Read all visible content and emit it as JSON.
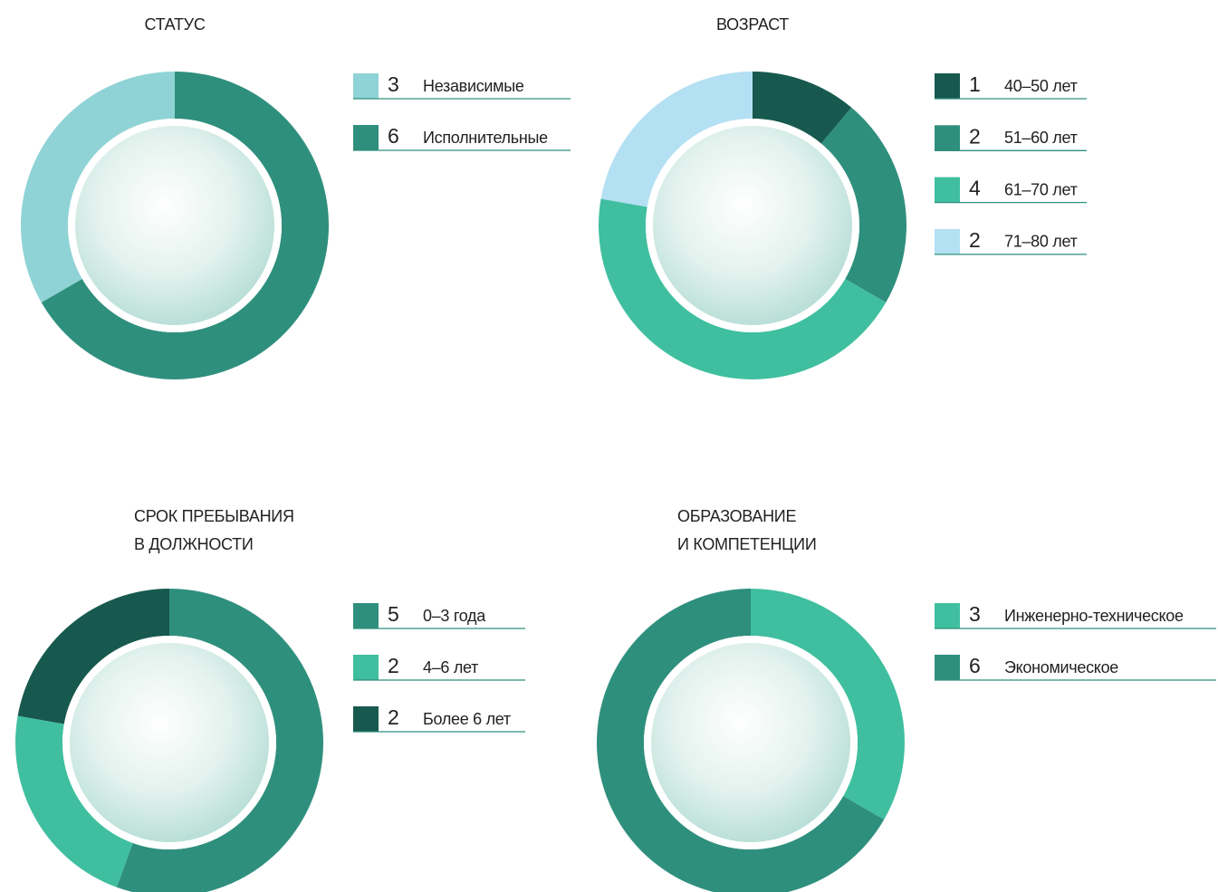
{
  "chart_data": [
    {
      "type": "pie",
      "title": "СТАТУС",
      "categories": [
        "Независимые",
        "Исполнительные"
      ],
      "values": [
        3,
        6
      ],
      "colors": [
        "#8fd3d6",
        "#2f8f7d"
      ],
      "counterclockwise": true
    },
    {
      "type": "pie",
      "title": "ВОЗРАСТ",
      "categories": [
        "40–50 лет",
        "51–60 лет",
        "61–70 лет",
        "71–80 лет"
      ],
      "values": [
        1,
        2,
        4,
        2
      ],
      "colors": [
        "#17594e",
        "#2f8f7d",
        "#3fbf9f",
        "#b4e0f3"
      ],
      "counterclockwise": false
    },
    {
      "type": "pie",
      "title": "СРОК ПРЕБЫВАНИЯ\nВ ДОЛЖНОСТИ",
      "categories": [
        "0–3 года",
        "4–6 лет",
        "Более 6 лет"
      ],
      "values": [
        5,
        2,
        2
      ],
      "colors": [
        "#2f8f7d",
        "#3fbf9f",
        "#17594e"
      ],
      "counterclockwise": false
    },
    {
      "type": "pie",
      "title": "ОБРАЗОВАНИЕ\nИ КОМПЕТЕНЦИИ",
      "categories": [
        "Инженерно-техническое",
        "Экономическое"
      ],
      "values": [
        3,
        6
      ],
      "colors": [
        "#3fbf9f",
        "#2f8f7d"
      ],
      "counterclockwise": false
    }
  ]
}
